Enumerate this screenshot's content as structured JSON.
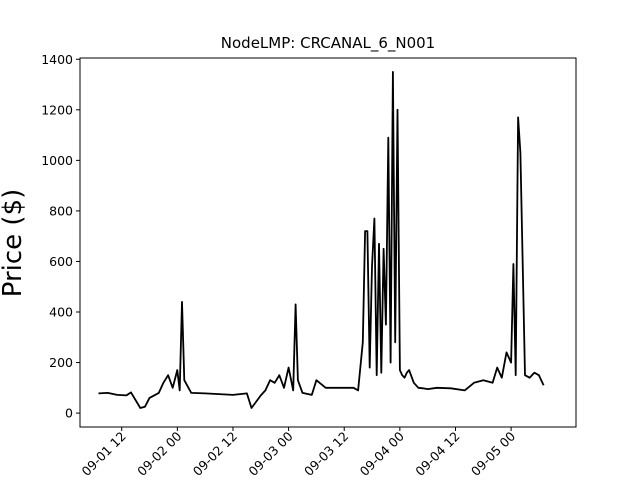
{
  "chart_data": {
    "type": "line",
    "title": "NodeLMP: CRCANAL_6_N001",
    "xlabel": "",
    "ylabel": "Price ($)",
    "xlim": [
      "09-01 03",
      "09-05 14"
    ],
    "ylim": [
      -55,
      1405
    ],
    "grid": false,
    "x_tick_labels": [
      "09-01 12",
      "09-02 00",
      "09-02 12",
      "09-03 00",
      "09-03 12",
      "09-04 00",
      "09-04 12",
      "09-05 00"
    ],
    "y_ticks": [
      0,
      200,
      400,
      600,
      800,
      1000,
      1200,
      1400
    ],
    "line_color": "#000000",
    "series": [
      {
        "x": [
          "09-01 07:00",
          "09-01 09:00",
          "09-01 11:00",
          "09-01 13:00",
          "09-01 14:00",
          "09-01 16:00",
          "09-01 17:00",
          "09-01 18:00",
          "09-01 20:00",
          "09-01 21:00",
          "09-01 22:00",
          "09-01 23:00",
          "09-02 00:00",
          "09-02 00:30",
          "09-02 01:00",
          "09-02 01:30",
          "09-02 03:00",
          "09-02 06:00",
          "09-02 09:00",
          "09-02 12:00",
          "09-02 15:00",
          "09-02 16:00",
          "09-02 18:00",
          "09-02 19:00",
          "09-02 20:00",
          "09-02 21:00",
          "09-02 22:00",
          "09-02 23:00",
          "09-03 00:00",
          "09-03 01:00",
          "09-03 01:30",
          "09-03 02:00",
          "09-03 03:00",
          "09-03 05:00",
          "09-03 06:00",
          "09-03 08:00",
          "09-03 11:00",
          "09-03 14:00",
          "09-03 15:00",
          "09-03 16:00",
          "09-03 16:30",
          "09-03 17:00",
          "09-03 17:30",
          "09-03 18:00",
          "09-03 18:30",
          "09-03 19:00",
          "09-03 19:30",
          "09-03 20:00",
          "09-03 20:30",
          "09-03 21:00",
          "09-03 21:30",
          "09-03 22:00",
          "09-03 22:30",
          "09-03 23:00",
          "09-03 23:30",
          "09-04 00:00",
          "09-04 00:30",
          "09-04 01:00",
          "09-04 01:30",
          "09-04 02:00",
          "09-04 03:00",
          "09-04 04:00",
          "09-04 05:00",
          "09-04 06:00",
          "09-04 08:00",
          "09-04 11:00",
          "09-04 14:00",
          "09-04 16:00",
          "09-04 18:00",
          "09-04 20:00",
          "09-04 21:00",
          "09-04 22:00",
          "09-04 23:00",
          "09-05 00:00",
          "09-05 00:30",
          "09-05 01:00",
          "09-05 01:30",
          "09-05 02:00",
          "09-05 03:00",
          "09-05 04:00",
          "09-05 05:00",
          "09-05 06:00",
          "09-05 07:00"
        ],
        "y": [
          78,
          80,
          72,
          70,
          82,
          20,
          25,
          60,
          80,
          120,
          150,
          100,
          170,
          90,
          440,
          130,
          80,
          78,
          75,
          72,
          78,
          20,
          70,
          90,
          130,
          120,
          150,
          100,
          180,
          90,
          430,
          130,
          80,
          72,
          130,
          100,
          100,
          100,
          90,
          280,
          720,
          720,
          180,
          580,
          770,
          150,
          670,
          160,
          650,
          350,
          1090,
          200,
          1350,
          280,
          1200,
          170,
          150,
          140,
          160,
          170,
          120,
          100,
          98,
          95,
          100,
          98,
          90,
          120,
          130,
          120,
          180,
          140,
          240,
          200,
          590,
          150,
          1170,
          1030,
          150,
          140,
          160,
          150,
          110
        ]
      }
    ]
  }
}
